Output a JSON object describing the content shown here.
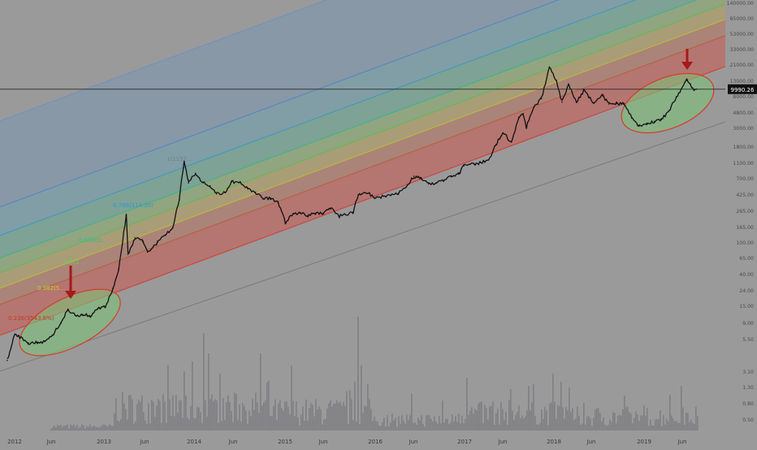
{
  "chart_data": {
    "type": "line",
    "title": "",
    "xlabel": "",
    "ylabel": "",
    "y_scale": "log",
    "grid": false,
    "legend": "none",
    "colors": {
      "background": "#9a9a9a",
      "price": "#111111",
      "volume": "#7a7a80",
      "ellipse_fill": "#7ec27a",
      "ellipse_stroke": "#d83a2a",
      "arrow": "#a51a1a",
      "price_label_bg": "#111111",
      "price_label_text": "#ffffff"
    },
    "x_ticks": [
      "2012",
      "Jun",
      "2013",
      "Jun",
      "2014",
      "Jun",
      "2015",
      "Jun",
      "2016",
      "Jun",
      "2017",
      "Jun",
      "2018",
      "Jun",
      "2019",
      "Jun"
    ],
    "y_ticks": [
      "140000.00",
      "85000.00",
      "53000.00",
      "33000.00",
      "21000.00",
      "13000.00",
      "8000.00",
      "4800.00",
      "3000.00",
      "1800.00",
      "1100.00",
      "700.00",
      "425.00",
      "265.00",
      "165.00",
      "100.00",
      "65.00",
      "40.00",
      "24.00",
      "15.00",
      "9.00",
      "5.50",
      "3.10",
      "1.30",
      "0.80",
      "0.50"
    ],
    "current_price": {
      "label": "9990.26",
      "value": 9990.26
    },
    "fib_band_labels": [
      {
        "text": "0.236(3543.6%)",
        "color": "#c0392b"
      },
      {
        "text": "0.382(5…",
        "color": "#c6d21c"
      },
      {
        "text": "0.5(1…",
        "color": "#5cd65c"
      },
      {
        "text": "0.618(3…",
        "color": "#27c08b"
      },
      {
        "text": "0.786(114.20)",
        "color": "#2f97cf"
      },
      {
        "text": "1(1157…",
        "color": "#7a7a7a"
      }
    ],
    "series": [
      {
        "name": "",
        "x": [
          "2011-12-15",
          "2012-01-15",
          "2012-02-15",
          "2012-03-10",
          "2012-04-15",
          "2012-05-15",
          "2012-06-15",
          "2012-07-20",
          "2012-08-17",
          "2012-09-15",
          "2012-10-15",
          "2012-11-15",
          "2012-12-15",
          "2013-01-15",
          "2013-02-15",
          "2013-03-10",
          "2013-04-10",
          "2013-04-17",
          "2013-05-15",
          "2013-06-15",
          "2013-07-05",
          "2013-08-15",
          "2013-09-15",
          "2013-10-15",
          "2013-11-10",
          "2013-11-30",
          "2013-12-18",
          "2014-01-15",
          "2014-02-15",
          "2014-03-15",
          "2014-04-10",
          "2014-05-15",
          "2014-06-10",
          "2014-07-15",
          "2014-08-15",
          "2014-09-15",
          "2014-10-15",
          "2014-11-15",
          "2014-12-15",
          "2015-01-14",
          "2015-02-15",
          "2015-03-15",
          "2015-04-15",
          "2015-05-15",
          "2015-06-15",
          "2015-07-15",
          "2015-08-20",
          "2015-09-15",
          "2015-10-15",
          "2015-11-05",
          "2015-12-15",
          "2016-01-15",
          "2016-02-15",
          "2016-03-15",
          "2016-04-15",
          "2016-05-15",
          "2016-06-17",
          "2016-07-15",
          "2016-08-15",
          "2016-09-15",
          "2016-10-15",
          "2016-11-15",
          "2016-12-15",
          "2017-01-05",
          "2017-02-15",
          "2017-03-15",
          "2017-04-15",
          "2017-05-15",
          "2017-06-12",
          "2017-07-16",
          "2017-08-15",
          "2017-09-02",
          "2017-09-15",
          "2017-10-15",
          "2017-11-15",
          "2017-12-17",
          "2018-01-15",
          "2018-02-06",
          "2018-03-05",
          "2018-04-06",
          "2018-05-05",
          "2018-06-15",
          "2018-07-20",
          "2018-08-15",
          "2018-09-15",
          "2018-10-15",
          "2018-11-15",
          "2018-12-15",
          "2019-01-15",
          "2019-02-15",
          "2019-03-15",
          "2019-04-15",
          "2019-05-15",
          "2019-06-26",
          "2019-07-10",
          "2019-07-25",
          "2019-08-05"
        ],
        "values": [
          2.9,
          6.4,
          5.6,
          4.9,
          5.0,
          5.1,
          6.2,
          8.9,
          13.5,
          11.2,
          11.5,
          11.0,
          13.5,
          14.5,
          25,
          45,
          230,
          70,
          115,
          103,
          75,
          100,
          125,
          155,
          360,
          1150,
          600,
          800,
          600,
          550,
          430,
          450,
          620,
          610,
          510,
          450,
          370,
          380,
          335,
          180,
          240,
          245,
          225,
          238,
          240,
          280,
          220,
          230,
          250,
          420,
          440,
          380,
          400,
          410,
          440,
          520,
          730,
          680,
          580,
          600,
          640,
          720,
          780,
          1000,
          1050,
          1100,
          1200,
          1900,
          2700,
          2050,
          4300,
          4800,
          3200,
          5800,
          7500,
          19500,
          13000,
          6800,
          11500,
          6800,
          9600,
          6500,
          8200,
          6400,
          6500,
          6500,
          4200,
          3300,
          3600,
          3800,
          4000,
          5200,
          8000,
          13000,
          11500,
          9700,
          10000
        ]
      }
    ]
  }
}
